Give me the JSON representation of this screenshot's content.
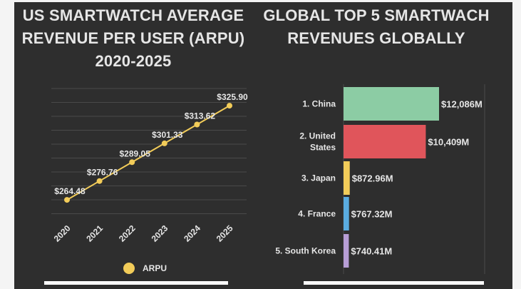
{
  "colors": {
    "background": "#2e2e2e",
    "text": "#e6e6e6",
    "line": "#f2cc59",
    "grid": "#4a4a4a"
  },
  "left_title": "US SMARTWATCH AVERAGE REVENUE PER USER (ARPU) 2020-2025",
  "right_title": "GLOBAL TOP 5 SMARTWACH REVENUES GLOBALLY",
  "chart_data": [
    {
      "type": "line",
      "title": "US SMARTWATCH AVERAGE REVENUE PER USER (ARPU) 2020-2025",
      "x": [
        "2020",
        "2021",
        "2022",
        "2023",
        "2024",
        "2025"
      ],
      "series": [
        {
          "name": "ARPU",
          "values": [
            264.48,
            276.76,
            289.05,
            301.33,
            313.62,
            325.9
          ],
          "labels": [
            "$264.48",
            "$276.76",
            "$289.05",
            "$301.33",
            "$313.62",
            "$325.90"
          ],
          "color": "#f2cc59"
        }
      ],
      "ylim": [
        258,
        332
      ],
      "grid": true,
      "legend": "bottom"
    },
    {
      "type": "bar",
      "orientation": "horizontal",
      "title": "GLOBAL TOP 5 SMARTWACH REVENUES GLOBALLY",
      "categories": [
        "1. China",
        "2. United States",
        "3. Japan",
        "4. France",
        "5. South Korea"
      ],
      "values": [
        12086,
        10409,
        872.96,
        767.32,
        740.41
      ],
      "unit": "$M",
      "labels": [
        "$12,086M",
        "$10,409M",
        "$872.96M",
        "$767.32M",
        "$740.41M"
      ],
      "colors": [
        "#8ccca4",
        "#e0555b",
        "#f2cc59",
        "#5aace0",
        "#b79ed6"
      ],
      "scale": "compressed"
    }
  ]
}
